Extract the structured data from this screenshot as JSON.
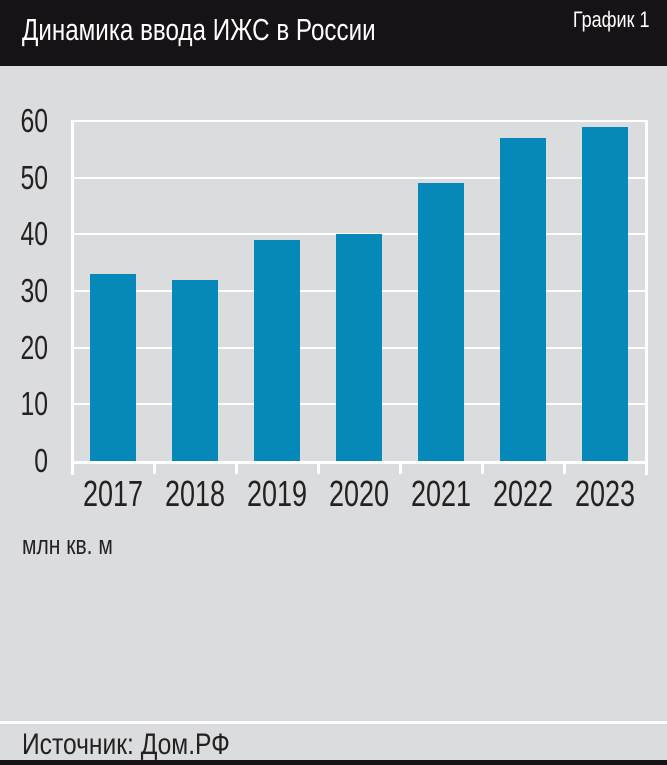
{
  "header": {
    "title": "Динамика ввода ИЖС в России",
    "label": "График 1"
  },
  "chart_data": {
    "type": "bar",
    "title": "Динамика ввода ИЖС в России",
    "categories": [
      "2017",
      "2018",
      "2019",
      "2020",
      "2021",
      "2022",
      "2023"
    ],
    "values": [
      33,
      32,
      39,
      40,
      49,
      57,
      59
    ],
    "xlabel": "",
    "ylabel": "млн кв. м",
    "ylim": [
      0,
      60
    ],
    "yticks": [
      0,
      10,
      20,
      30,
      40,
      50,
      60
    ],
    "grid": true,
    "legend": false,
    "bar_color": "#0689b8",
    "gridline_color": "#ffffff",
    "background": "#dbdcdd"
  },
  "footer": {
    "source": "Источник: Дом.РФ"
  },
  "colors": {
    "header_background": "#171215",
    "header_text": "#ffffff",
    "axis_text": "#232122",
    "bar": "#0689b8",
    "background": "#dbdcdd",
    "grid": "#ffffff"
  }
}
